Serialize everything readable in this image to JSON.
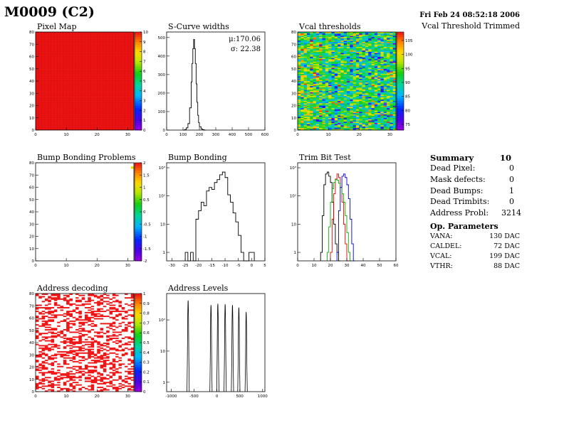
{
  "header": {
    "title": "M0009 (C2)",
    "date": "Fri Feb 24 08:52:18 2006",
    "subtitle": "Vcal Threshold Trimmed"
  },
  "summary": {
    "title": "Summary",
    "total": "10",
    "rows": [
      {
        "label": "Dead Pixel:",
        "value": "0"
      },
      {
        "label": "Mask defects:",
        "value": "0"
      },
      {
        "label": "Dead Bumps:",
        "value": "1"
      },
      {
        "label": "Dead Trimbits:",
        "value": "0"
      },
      {
        "label": "Address Probl:",
        "value": "3214"
      }
    ]
  },
  "op_parameters": {
    "title": "Op. Parameters",
    "rows": [
      {
        "label": "VANA:",
        "value": "130 DAC"
      },
      {
        "label": "CALDEL:",
        "value": "72 DAC"
      },
      {
        "label": "VCAL:",
        "value": "199 DAC"
      },
      {
        "label": "VTHR:",
        "value": "88 DAC"
      }
    ]
  },
  "chart_data": [
    {
      "type": "heatmap",
      "title": "Pixel Map",
      "x_ticks": [
        "0",
        "10",
        "20",
        "30"
      ],
      "x_tick_values": [
        0,
        10,
        20,
        30
      ],
      "y_ticks": [
        "0",
        "10",
        "20",
        "30",
        "40",
        "50",
        "60",
        "70",
        "80"
      ],
      "y_tick_values": [
        0,
        10,
        20,
        30,
        40,
        50,
        60,
        70,
        80
      ],
      "xlim": [
        0,
        32
      ],
      "ylim": [
        0,
        80
      ],
      "z_ticks": [
        "0",
        "1",
        "2",
        "3",
        "4",
        "5",
        "6",
        "7",
        "8",
        "9",
        "10"
      ],
      "zlim": [
        0,
        10
      ],
      "fill": "uniform",
      "value": 10
    },
    {
      "type": "line",
      "title": "S-Curve widths",
      "stats": [
        "μ:170.06",
        "σ: 22.38"
      ],
      "x_ticks": [
        "0",
        "100",
        "200",
        "300",
        "400",
        "500",
        "600"
      ],
      "x_tick_values": [
        0,
        100,
        200,
        300,
        400,
        500,
        600
      ],
      "y_ticks": [
        "0",
        "100",
        "200",
        "300",
        "400",
        "500"
      ],
      "y_tick_values": [
        0,
        100,
        200,
        300,
        400,
        500
      ],
      "xlim": [
        0,
        600
      ],
      "ylim": [
        0,
        530
      ],
      "x": [
        100,
        110,
        120,
        130,
        140,
        150,
        155,
        160,
        165,
        170,
        175,
        180,
        185,
        190,
        195,
        200,
        210,
        220,
        230
      ],
      "y": [
        0,
        3,
        12,
        35,
        120,
        260,
        360,
        440,
        490,
        440,
        360,
        250,
        150,
        80,
        40,
        18,
        6,
        2,
        0
      ]
    },
    {
      "type": "heatmap",
      "title": "Vcal thresholds",
      "x_ticks": [
        "0",
        "10",
        "20",
        "30"
      ],
      "x_tick_values": [
        0,
        10,
        20,
        30
      ],
      "y_ticks": [
        "0",
        "10",
        "20",
        "30",
        "40",
        "50",
        "60",
        "70",
        "80"
      ],
      "y_tick_values": [
        0,
        10,
        20,
        30,
        40,
        50,
        60,
        70,
        80
      ],
      "xlim": [
        0,
        32
      ],
      "ylim": [
        0,
        80
      ],
      "z_ticks": [
        "75",
        "80",
        "85",
        "90",
        "95",
        "100",
        "105"
      ],
      "z_tick_values": [
        75,
        80,
        85,
        90,
        95,
        100,
        105
      ],
      "zlim": [
        73,
        108
      ],
      "fill": "random",
      "mean": 91,
      "spread": 6
    },
    {
      "type": "heatmap",
      "title": "Bump Bonding Problems",
      "x_ticks": [
        "0",
        "10",
        "20",
        "30"
      ],
      "x_tick_values": [
        0,
        10,
        20,
        30
      ],
      "y_ticks": [
        "0",
        "10",
        "20",
        "30",
        "40",
        "50",
        "60",
        "70",
        "80"
      ],
      "y_tick_values": [
        0,
        10,
        20,
        30,
        40,
        50,
        60,
        70,
        80
      ],
      "xlim": [
        0,
        32
      ],
      "ylim": [
        0,
        80
      ],
      "z_ticks": [
        "-2",
        "-1.5",
        "-1",
        "-0.5",
        "0",
        "0.5",
        "1",
        "1.5",
        "2"
      ],
      "z_tick_values": [
        -2,
        -1.5,
        -1,
        -0.5,
        0,
        0.5,
        1,
        1.5,
        2
      ],
      "zlim": [
        -2,
        2
      ],
      "points": [
        {
          "x": 31,
          "y": 76,
          "v": 1
        }
      ]
    },
    {
      "type": "line",
      "title": "Bump Bonding",
      "log_y": true,
      "x_ticks": [
        "-30",
        "-25",
        "-20",
        "-15",
        "-10",
        "-5",
        "0",
        "5"
      ],
      "x_tick_values": [
        -30,
        -25,
        -20,
        -15,
        -10,
        -5,
        0,
        5
      ],
      "y_ticks": [
        "1",
        "10",
        "10²",
        "10³"
      ],
      "y_tick_values": [
        1,
        10,
        100,
        1000
      ],
      "xlim": [
        -32,
        5
      ],
      "ylim": [
        0.5,
        1500
      ],
      "x": [
        -25,
        -24,
        -23,
        -22,
        -21,
        -20,
        -19,
        -18,
        -17,
        -16,
        -15,
        -14,
        -13,
        -12,
        -11,
        -10,
        -9,
        -8,
        -7,
        -6,
        -5,
        -4,
        -3,
        -2,
        -1,
        0,
        1
      ],
      "y": [
        1,
        0,
        1,
        0,
        15,
        30,
        60,
        45,
        150,
        200,
        170,
        300,
        380,
        560,
        700,
        450,
        110,
        60,
        25,
        12,
        4,
        1,
        0,
        0,
        1,
        1,
        0
      ]
    },
    {
      "type": "line",
      "title": "Trim Bit Test",
      "log_y": true,
      "x_ticks": [
        "0",
        "10",
        "20",
        "30",
        "40",
        "50",
        "60"
      ],
      "x_tick_values": [
        0,
        10,
        20,
        30,
        40,
        50,
        60
      ],
      "y_ticks": [
        "1",
        "10",
        "10²",
        "10³"
      ],
      "y_tick_values": [
        1,
        10,
        100,
        1000
      ],
      "xlim": [
        0,
        60
      ],
      "ylim": [
        0.5,
        1500
      ],
      "series": [
        {
          "color": "#000000",
          "x": [
            14,
            15,
            16,
            17,
            18,
            19,
            20,
            21,
            22,
            23,
            24,
            25
          ],
          "y": [
            1,
            20,
            250,
            600,
            700,
            500,
            300,
            60,
            10,
            2,
            1,
            0
          ]
        },
        {
          "color": "#e00000",
          "x": [
            20,
            21,
            22,
            23,
            24,
            25,
            26,
            27,
            28,
            29,
            30
          ],
          "y": [
            1,
            15,
            120,
            400,
            600,
            450,
            200,
            60,
            10,
            2,
            0
          ]
        },
        {
          "color": "#00b000",
          "x": [
            18,
            19,
            20,
            21,
            22,
            23,
            24,
            25,
            26,
            27,
            28,
            29,
            30,
            31,
            32
          ],
          "y": [
            1,
            8,
            60,
            180,
            300,
            380,
            360,
            280,
            200,
            120,
            60,
            20,
            5,
            1,
            0
          ]
        },
        {
          "color": "#0000e0",
          "x": [
            24,
            25,
            26,
            27,
            28,
            29,
            30,
            31,
            32,
            33,
            34
          ],
          "y": [
            1,
            30,
            200,
            500,
            600,
            450,
            250,
            80,
            15,
            2,
            0
          ]
        }
      ]
    },
    {
      "type": "heatmap",
      "title": "Address decoding",
      "x_ticks": [
        "0",
        "10",
        "20",
        "30"
      ],
      "x_tick_values": [
        0,
        10,
        20,
        30
      ],
      "y_ticks": [
        "0",
        "10",
        "20",
        "30",
        "40",
        "50",
        "60",
        "70",
        "80"
      ],
      "y_tick_values": [
        0,
        10,
        20,
        30,
        40,
        50,
        60,
        70,
        80
      ],
      "xlim": [
        0,
        32
      ],
      "ylim": [
        0,
        80
      ],
      "z_ticks": [
        "0",
        "0.1",
        "0.2",
        "0.3",
        "0.4",
        "0.5",
        "0.6",
        "0.7",
        "0.8",
        "0.9",
        "1"
      ],
      "z_tick_values": [
        0,
        0.1,
        0.2,
        0.3,
        0.4,
        0.5,
        0.6,
        0.7,
        0.8,
        0.9,
        1
      ],
      "zlim": [
        0,
        1
      ],
      "fill": "sparse",
      "fraction": 0.38,
      "value": 1
    },
    {
      "type": "line",
      "title": "Address Levels",
      "log_y": true,
      "x_ticks": [
        "-1000",
        "-500",
        "0",
        "500",
        "1000"
      ],
      "x_tick_values": [
        -1000,
        -500,
        0,
        500,
        1000
      ],
      "y_ticks": [
        "1",
        "10",
        "10²"
      ],
      "y_tick_values": [
        1,
        10,
        100
      ],
      "xlim": [
        -1100,
        1050
      ],
      "ylim": [
        0.5,
        700
      ],
      "peaks": [
        {
          "x": -630,
          "height": 420
        },
        {
          "x": -130,
          "height": 300
        },
        {
          "x": 20,
          "height": 330
        },
        {
          "x": 180,
          "height": 320
        },
        {
          "x": 340,
          "height": 300
        },
        {
          "x": 480,
          "height": 250
        },
        {
          "x": 640,
          "height": 180
        }
      ],
      "peak_width": 10
    }
  ]
}
